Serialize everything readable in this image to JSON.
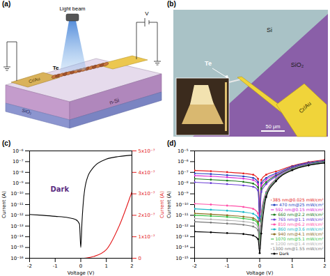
{
  "figure": {
    "a": {
      "label": "(a)",
      "texts": {
        "light": "Light beam",
        "voltage": "V",
        "wire": "Te",
        "electrode": "Cr/Au",
        "substrate": "n-Si",
        "oxide": "SiO₂"
      }
    },
    "b": {
      "label": "(b)",
      "texts": {
        "si": "Si",
        "wire": "Te",
        "oxide": "SiO₂",
        "electrode": "Cr/Au",
        "scale_bar": "50 μm"
      }
    }
  },
  "chart_data": [
    {
      "type": "line",
      "title": "(c)",
      "annotations": [
        "Dark"
      ],
      "x": [
        -2,
        -1.5,
        -1,
        -0.5,
        -0.2,
        -0.05,
        0,
        0.05,
        0.2,
        0.5,
        1,
        1.5,
        2
      ],
      "xlim": [
        -2,
        2
      ],
      "xticks": [
        -2,
        -1,
        0,
        1,
        2
      ],
      "xlabel": "Voltage (V)",
      "ylabel": "Current (A)",
      "y2label": "Current (A)",
      "log": "y",
      "ylim": [
        1e-16,
        1e-06
      ],
      "yticks": [
        {
          "value": 1e-16,
          "label": "10⁻¹⁶"
        },
        {
          "value": 1e-15,
          "label": "10⁻¹⁵"
        },
        {
          "value": 1e-14,
          "label": "10⁻¹⁴"
        },
        {
          "value": 1e-13,
          "label": "10⁻¹³"
        },
        {
          "value": 1e-12,
          "label": "10⁻¹²"
        },
        {
          "value": 1e-11,
          "label": "10⁻¹¹"
        },
        {
          "value": 1e-10,
          "label": "10⁻¹⁰"
        },
        {
          "value": 1e-09,
          "label": "10⁻⁹"
        },
        {
          "value": 1e-08,
          "label": "10⁻⁸"
        },
        {
          "value": 1e-07,
          "label": "10⁻⁷"
        },
        {
          "value": 1e-06,
          "label": "10⁻⁶"
        }
      ],
      "y2lim": [
        0,
        5e-07
      ],
      "y2ticks": [
        0,
        {
          "value": 1e-07,
          "label": "1x10⁻⁷"
        },
        {
          "value": 2e-07,
          "label": "2x10⁻⁷"
        },
        {
          "value": 3e-07,
          "label": "3x10⁻⁷"
        },
        {
          "value": 4e-07,
          "label": "4x10⁻⁷"
        },
        {
          "value": 5e-07,
          "label": "5x10⁻⁷"
        }
      ],
      "series": [
        {
          "color": "#000000",
          "values": [
            1.2e-12,
            1e-12,
            8e-13,
            6e-13,
            4e-13,
            1.5e-13,
            1e-15,
            3e-13,
            1e-09,
            3e-08,
            1.7e-07,
            3e-07,
            4e-07
          ]
        },
        {
          "color": "#e41a1c",
          "axis": "y2",
          "values": [
            0,
            0,
            0,
            0,
            0,
            0,
            0,
            0,
            1e-09,
            8e-09,
            4e-08,
            1.5e-07,
            3.1e-07
          ]
        }
      ]
    },
    {
      "type": "line",
      "title": "(d)",
      "x": [
        -2,
        -1.5,
        -1,
        -0.5,
        -0.2,
        -0.05,
        0,
        0.05,
        0.2,
        0.5,
        1,
        1.5,
        2
      ],
      "xlim": [
        -2,
        2
      ],
      "xticks": [
        -2,
        -1,
        0,
        1,
        2
      ],
      "xlabel": "Voltage (V)",
      "ylabel": "Current (A)",
      "log": "y",
      "ylim": [
        1e-15,
        1e-05
      ],
      "yticks": [
        {
          "value": 1e-15,
          "label": "10⁻¹⁵"
        },
        {
          "value": 1e-14,
          "label": "10⁻¹⁴"
        },
        {
          "value": 1e-13,
          "label": "10⁻¹³"
        },
        {
          "value": 1e-12,
          "label": "10⁻¹²"
        },
        {
          "value": 1e-11,
          "label": "10⁻¹¹"
        },
        {
          "value": 1e-10,
          "label": "10⁻¹⁰"
        },
        {
          "value": 1e-09,
          "label": "10⁻⁹"
        },
        {
          "value": 1e-08,
          "label": "10⁻⁸"
        },
        {
          "value": 1e-07,
          "label": "10⁻⁷"
        },
        {
          "value": 1e-06,
          "label": "10⁻⁶"
        },
        {
          "value": 1e-05,
          "label": "10⁻⁵"
        }
      ],
      "marker": "circle",
      "legend": "lower right",
      "series": [
        {
          "name": "385 nm@0.025 mW/cm²",
          "color": "#e41a1c",
          "values": [
            1.5e-07,
            1.3e-07,
            1.05e-07,
            8e-08,
            6e-08,
            2.5e-08,
            3e-11,
            2e-08,
            6e-08,
            1.2e-07,
            4e-07,
            9e-07,
            1.5e-06
          ]
        },
        {
          "name": "470 nm@25 mW/cm²",
          "color": "#1f3fbf",
          "values": [
            8e-08,
            7e-08,
            5.5e-08,
            4.2e-08,
            3e-08,
            1.2e-08,
            2e-11,
            1e-08,
            3e-08,
            8e-08,
            3.5e-07,
            8e-07,
            1.3e-06
          ]
        },
        {
          "name": "592 nm@0.15 mW/cm²",
          "color": "#d62ad6",
          "values": [
            5e-08,
            4.3e-08,
            3.5e-08,
            2.6e-08,
            1.9e-08,
            8e-09,
            1e-11,
            6e-09,
            2e-08,
            6e-08,
            3e-07,
            7e-07,
            1.2e-06
          ]
        },
        {
          "name": "660 nm@2.2 mW/cm²",
          "color": "#1a7a1a",
          "values": [
            2.5e-08,
            2.1e-08,
            1.7e-08,
            1.3e-08,
            9e-09,
            4e-09,
            5e-12,
            3e-09,
            1.2e-08,
            5e-08,
            2.8e-07,
            6.5e-07,
            1.1e-06
          ]
        },
        {
          "name": "765 nm@1.1 mW/cm²",
          "color": "#6a3dd6",
          "values": [
            1.2e-08,
            1e-08,
            8e-09,
            6e-09,
            4.5e-09,
            2e-09,
            3e-12,
            1.5e-09,
            8e-09,
            4e-08,
            2.6e-07,
            6e-07,
            1e-06
          ]
        },
        {
          "name": "810 nm@6.2 mW/cm²",
          "color": "#ff4fa8",
          "values": [
            1.2e-10,
            1e-10,
            8e-11,
            6e-11,
            4e-11,
            1.5e-11,
            1e-13,
            2e-11,
            1.5e-09,
            2.5e-08,
            2.2e-07,
            5.5e-07,
            9.5e-07
          ]
        },
        {
          "name": "860 nm@3.6 mW/cm²",
          "color": "#18b7c9",
          "values": [
            4e-11,
            3.3e-11,
            2.7e-11,
            2e-11,
            1.4e-11,
            6e-12,
            5e-14,
            8e-12,
            1.2e-09,
            2.2e-08,
            2.1e-07,
            5.3e-07,
            9e-07
          ]
        },
        {
          "name": "940 nm@4.1 mW/cm²",
          "color": "#8c6d1f",
          "values": [
            1.5e-11,
            1.25e-11,
            1e-11,
            7.5e-12,
            5.5e-12,
            2.5e-12,
            3e-14,
            4e-12,
            1e-09,
            2e-08,
            2e-07,
            5e-07,
            8.5e-07
          ]
        },
        {
          "name": "1070 nm@5.1 mW/cm²",
          "color": "#2fbf3f",
          "values": [
            1e-11,
            8.5e-12,
            7e-12,
            5e-12,
            3.7e-12,
            1.6e-12,
            2e-14,
            3e-12,
            9e-10,
            1.9e-08,
            1.9e-07,
            4.9e-07,
            8.2e-07
          ]
        },
        {
          "name": "1200 nm@1.4 mW/cm²",
          "color": "#b0b0b0",
          "values": [
            5e-12,
            4.2e-12,
            3.4e-12,
            2.6e-12,
            1.9e-12,
            8e-13,
            1e-14,
            1.5e-12,
            8e-10,
            1.8e-08,
            1.8e-07,
            4.8e-07,
            8e-07
          ]
        },
        {
          "name": "1300 nm@1.55 mW/cm²",
          "color": "#777777",
          "values": [
            2.5e-12,
            2.1e-12,
            1.7e-12,
            1.3e-12,
            9e-13,
            4e-13,
            8e-15,
            1e-12,
            7e-10,
            1.7e-08,
            1.7e-07,
            4.6e-07,
            7.8e-07
          ]
        },
        {
          "name": "Dark",
          "color": "#000000",
          "values": [
            3e-13,
            2.6e-13,
            2.2e-13,
            1.8e-13,
            1.3e-13,
            6e-14,
            3e-15,
            2e-13,
            5e-10,
            1.5e-08,
            1.6e-07,
            4.5e-07,
            7.5e-07
          ]
        }
      ]
    }
  ]
}
